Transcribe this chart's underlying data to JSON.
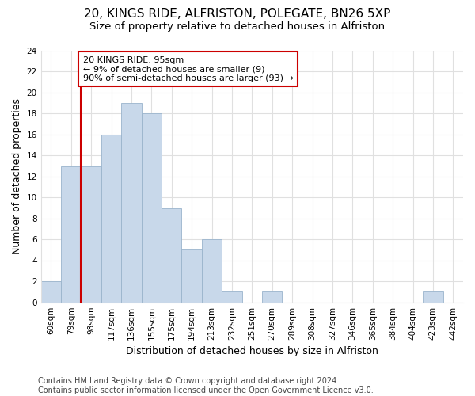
{
  "title1": "20, KINGS RIDE, ALFRISTON, POLEGATE, BN26 5XP",
  "title2": "Size of property relative to detached houses in Alfriston",
  "xlabel": "Distribution of detached houses by size in Alfriston",
  "ylabel": "Number of detached properties",
  "categories": [
    "60sqm",
    "79sqm",
    "98sqm",
    "117sqm",
    "136sqm",
    "155sqm",
    "175sqm",
    "194sqm",
    "213sqm",
    "232sqm",
    "251sqm",
    "270sqm",
    "289sqm",
    "308sqm",
    "327sqm",
    "346sqm",
    "365sqm",
    "384sqm",
    "404sqm",
    "423sqm",
    "442sqm"
  ],
  "values": [
    2,
    13,
    13,
    16,
    19,
    18,
    9,
    5,
    6,
    1,
    0,
    1,
    0,
    0,
    0,
    0,
    0,
    0,
    0,
    1,
    0
  ],
  "bar_color": "#c8d8ea",
  "bar_edgecolor": "#9ab4cc",
  "vline_x": 1.5,
  "vline_color": "#cc0000",
  "annotation_text": "20 KINGS RIDE: 95sqm\n← 9% of detached houses are smaller (9)\n90% of semi-detached houses are larger (93) →",
  "annotation_box_color": "#cc0000",
  "ylim": [
    0,
    24
  ],
  "yticks": [
    0,
    2,
    4,
    6,
    8,
    10,
    12,
    14,
    16,
    18,
    20,
    22,
    24
  ],
  "bg_color": "#ffffff",
  "plot_bg_color": "#ffffff",
  "grid_color": "#e0e0e0",
  "footer": "Contains HM Land Registry data © Crown copyright and database right 2024.\nContains public sector information licensed under the Open Government Licence v3.0.",
  "title1_fontsize": 11,
  "title2_fontsize": 9.5,
  "xlabel_fontsize": 9,
  "ylabel_fontsize": 9,
  "tick_fontsize": 7.5,
  "footer_fontsize": 7
}
